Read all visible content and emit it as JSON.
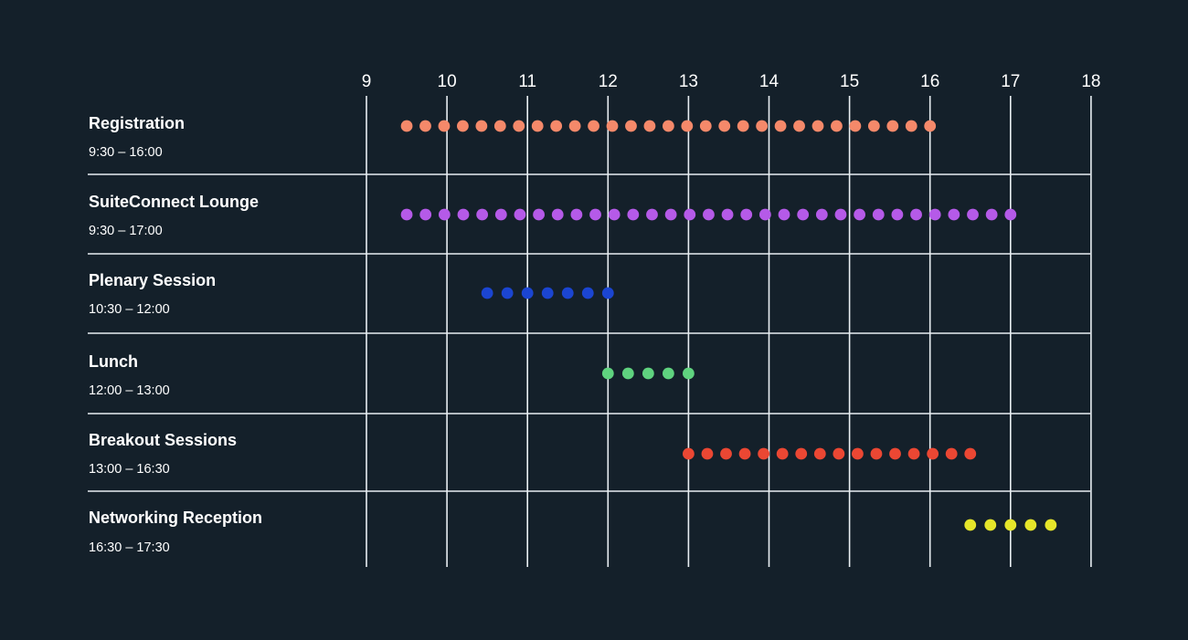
{
  "chart_data": {
    "type": "timeline",
    "x_axis": {
      "unit": "hour",
      "ticks": [
        "9",
        "10",
        "11",
        "12",
        "13",
        "14",
        "15",
        "16",
        "17",
        "18"
      ],
      "range": [
        9,
        18
      ],
      "position": "top"
    },
    "grid": true,
    "legend": "none",
    "rows": [
      {
        "label": "Registration",
        "time_label": "9:30 – 16:00",
        "start": 9.5,
        "end": 16.0,
        "dots": 29,
        "color": "#f5896a"
      },
      {
        "label": "SuiteConnect Lounge",
        "time_label": "9:30 – 17:00",
        "start": 9.5,
        "end": 17.0,
        "dots": 33,
        "color": "#b55ae8"
      },
      {
        "label": "Plenary Session",
        "time_label": "10:30 – 12:00",
        "start": 10.5,
        "end": 12.0,
        "dots": 7,
        "color": "#1b45d1"
      },
      {
        "label": "Lunch",
        "time_label": "12:00 – 13:00",
        "start": 12.0,
        "end": 13.0,
        "dots": 5,
        "color": "#5fd37f"
      },
      {
        "label": "Breakout Sessions",
        "time_label": "13:00 – 16:30",
        "start": 13.0,
        "end": 16.5,
        "dots": 16,
        "color": "#eb4733"
      },
      {
        "label": "Networking Reception",
        "time_label": "16:30 – 17:30",
        "start": 16.5,
        "end": 17.5,
        "dots": 5,
        "color": "#e6e62a"
      }
    ]
  },
  "colors": {
    "background": "#14202a",
    "grid": "#e8eef2",
    "text": "#ffffff"
  }
}
